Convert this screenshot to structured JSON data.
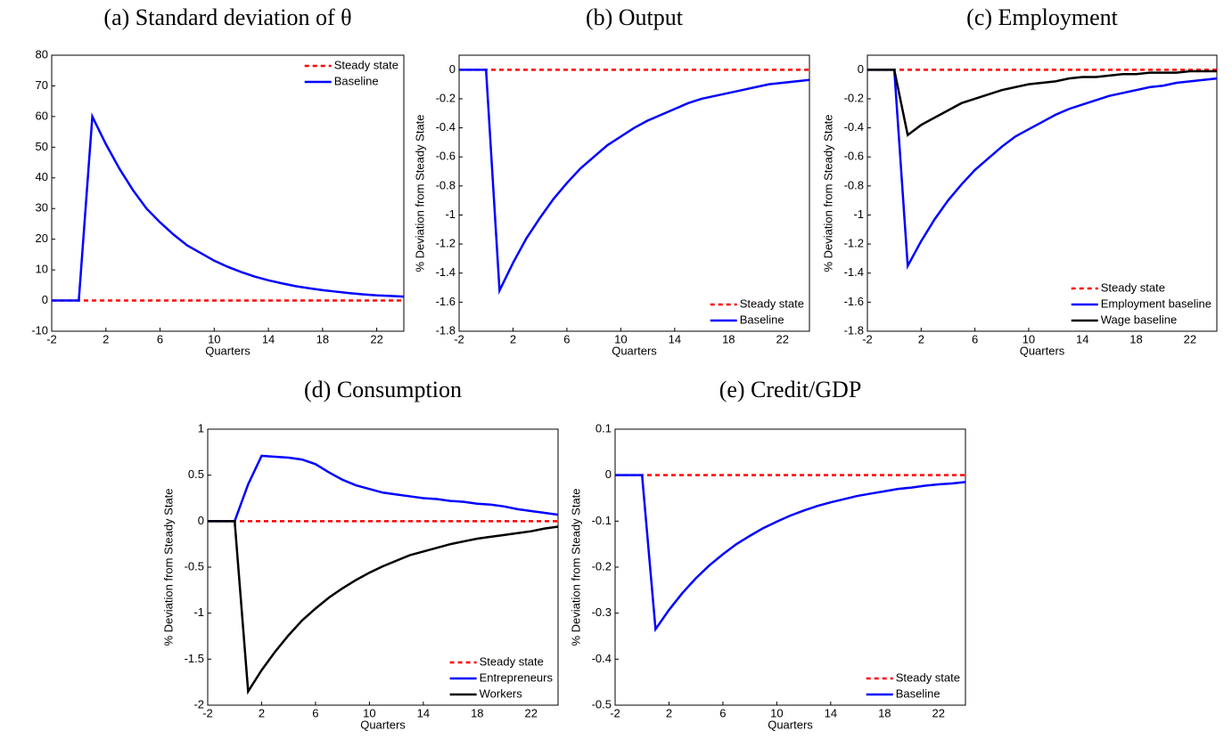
{
  "chart_data": [
    {
      "type": "line",
      "title": "(a) Standard deviation of θ",
      "xlabel": "Quarters",
      "x": [
        -2,
        -1,
        0,
        1,
        2,
        3,
        4,
        5,
        6,
        7,
        8,
        9,
        10,
        11,
        12,
        13,
        14,
        15,
        16,
        17,
        18,
        19,
        20,
        21,
        22,
        23,
        24
      ],
      "xlim": [
        -2,
        24
      ],
      "xticks": [
        -2,
        2,
        6,
        10,
        14,
        18,
        22
      ],
      "ylim": [
        -10,
        80
      ],
      "yticks": [
        -10,
        0,
        10,
        20,
        30,
        40,
        50,
        60,
        70,
        80
      ],
      "legend": "upper right",
      "series": [
        {
          "name": "Steady state",
          "color": "#ff0000",
          "linestyle": "dashed",
          "values": [
            0,
            0,
            0,
            0,
            0,
            0,
            0,
            0,
            0,
            0,
            0,
            0,
            0,
            0,
            0,
            0,
            0,
            0,
            0,
            0,
            0,
            0,
            0,
            0,
            0,
            0,
            0
          ]
        },
        {
          "name": "Baseline",
          "color": "#0000ff",
          "linestyle": "solid",
          "values": [
            0,
            0,
            0,
            60,
            51,
            43,
            36,
            30,
            25.5,
            21.5,
            18,
            15.5,
            13,
            11,
            9.3,
            7.8,
            6.6,
            5.6,
            4.7,
            4,
            3.4,
            2.9,
            2.4,
            2,
            1.7,
            1.5,
            1.3
          ]
        }
      ]
    },
    {
      "type": "line",
      "title": "(b) Output",
      "xlabel": "Quarters",
      "ylabel": "% Deviation from Steady State",
      "x": [
        -2,
        -1,
        0,
        1,
        2,
        3,
        4,
        5,
        6,
        7,
        8,
        9,
        10,
        11,
        12,
        13,
        14,
        15,
        16,
        17,
        18,
        19,
        20,
        21,
        22,
        23,
        24
      ],
      "xlim": [
        -2,
        24
      ],
      "xticks": [
        -2,
        2,
        6,
        10,
        14,
        18,
        22
      ],
      "ylim": [
        -1.8,
        0.1
      ],
      "yticks": [
        -1.8,
        -1.6,
        -1.4,
        -1.2,
        -1,
        -0.8,
        -0.6,
        -0.4,
        -0.2,
        0
      ],
      "legend": "lower right",
      "series": [
        {
          "name": "Steady state",
          "color": "#ff0000",
          "linestyle": "dashed",
          "values": [
            0,
            0,
            0,
            0,
            0,
            0,
            0,
            0,
            0,
            0,
            0,
            0,
            0,
            0,
            0,
            0,
            0,
            0,
            0,
            0,
            0,
            0,
            0,
            0,
            0,
            0,
            0
          ]
        },
        {
          "name": "Baseline",
          "color": "#0000ff",
          "linestyle": "solid",
          "values": [
            0,
            0,
            0,
            -1.52,
            -1.33,
            -1.16,
            -1.02,
            -0.89,
            -0.78,
            -0.68,
            -0.6,
            -0.52,
            -0.46,
            -0.4,
            -0.35,
            -0.31,
            -0.27,
            -0.23,
            -0.2,
            -0.18,
            -0.16,
            -0.14,
            -0.12,
            -0.1,
            -0.09,
            -0.08,
            -0.07
          ]
        }
      ]
    },
    {
      "type": "line",
      "title": "(c) Employment",
      "xlabel": "Quarters",
      "ylabel": "% Deviation from Steady State",
      "x": [
        -2,
        -1,
        0,
        1,
        2,
        3,
        4,
        5,
        6,
        7,
        8,
        9,
        10,
        11,
        12,
        13,
        14,
        15,
        16,
        17,
        18,
        19,
        20,
        21,
        22,
        23,
        24
      ],
      "xlim": [
        -2,
        24
      ],
      "xticks": [
        -2,
        2,
        6,
        10,
        14,
        18,
        22
      ],
      "ylim": [
        -1.8,
        0.1
      ],
      "yticks": [
        -1.8,
        -1.6,
        -1.4,
        -1.2,
        -1,
        -0.8,
        -0.6,
        -0.4,
        -0.2,
        0
      ],
      "legend": "lower right",
      "series": [
        {
          "name": "Steady state",
          "color": "#ff0000",
          "linestyle": "dashed",
          "values": [
            0,
            0,
            0,
            0,
            0,
            0,
            0,
            0,
            0,
            0,
            0,
            0,
            0,
            0,
            0,
            0,
            0,
            0,
            0,
            0,
            0,
            0,
            0,
            0,
            0,
            0,
            0
          ]
        },
        {
          "name": "Employment baseline",
          "color": "#0000ff",
          "linestyle": "solid",
          "values": [
            0,
            0,
            0,
            -1.35,
            -1.18,
            -1.03,
            -0.9,
            -0.79,
            -0.69,
            -0.61,
            -0.53,
            -0.46,
            -0.41,
            -0.36,
            -0.31,
            -0.27,
            -0.24,
            -0.21,
            -0.18,
            -0.16,
            -0.14,
            -0.12,
            -0.11,
            -0.09,
            -0.08,
            -0.07,
            -0.06
          ]
        },
        {
          "name": "Wage baseline",
          "color": "#000000",
          "linestyle": "solid",
          "values": [
            0,
            0,
            0,
            -0.45,
            -0.38,
            -0.33,
            -0.28,
            -0.23,
            -0.2,
            -0.17,
            -0.14,
            -0.12,
            -0.1,
            -0.09,
            -0.08,
            -0.06,
            -0.05,
            -0.05,
            -0.04,
            -0.03,
            -0.03,
            -0.02,
            -0.02,
            -0.02,
            -0.01,
            -0.01,
            -0.01
          ]
        }
      ]
    },
    {
      "type": "line",
      "title": "(d) Consumption",
      "xlabel": "Quarters",
      "ylabel": "% Deviation from Steady State",
      "x": [
        -2,
        -1,
        0,
        1,
        2,
        3,
        4,
        5,
        6,
        7,
        8,
        9,
        10,
        11,
        12,
        13,
        14,
        15,
        16,
        17,
        18,
        19,
        20,
        21,
        22,
        23,
        24
      ],
      "xlim": [
        -2,
        24
      ],
      "xticks": [
        -2,
        2,
        6,
        10,
        14,
        18,
        22
      ],
      "ylim": [
        -2,
        1
      ],
      "yticks": [
        -2,
        -1.5,
        -1,
        -0.5,
        0,
        0.5,
        1
      ],
      "legend": "lower right",
      "series": [
        {
          "name": "Steady state",
          "color": "#ff0000",
          "linestyle": "dashed",
          "values": [
            0,
            0,
            0,
            0,
            0,
            0,
            0,
            0,
            0,
            0,
            0,
            0,
            0,
            0,
            0,
            0,
            0,
            0,
            0,
            0,
            0,
            0,
            0,
            0,
            0,
            0,
            0
          ]
        },
        {
          "name": "Entrepreneurs",
          "color": "#0000ff",
          "linestyle": "solid",
          "values": [
            0,
            0,
            0,
            0.4,
            0.71,
            0.7,
            0.69,
            0.67,
            0.62,
            0.53,
            0.45,
            0.39,
            0.35,
            0.31,
            0.29,
            0.27,
            0.25,
            0.24,
            0.22,
            0.21,
            0.19,
            0.18,
            0.16,
            0.13,
            0.11,
            0.09,
            0.07
          ]
        },
        {
          "name": "Workers",
          "color": "#000000",
          "linestyle": "solid",
          "values": [
            0,
            0,
            0,
            -1.85,
            -1.62,
            -1.42,
            -1.24,
            -1.08,
            -0.95,
            -0.83,
            -0.73,
            -0.64,
            -0.56,
            -0.49,
            -0.43,
            -0.37,
            -0.33,
            -0.29,
            -0.25,
            -0.22,
            -0.19,
            -0.17,
            -0.15,
            -0.13,
            -0.11,
            -0.08,
            -0.06
          ]
        }
      ]
    },
    {
      "type": "line",
      "title": "(e) Credit/GDP",
      "xlabel": "Quarters",
      "ylabel": "% Deviation from Steady State",
      "x": [
        -2,
        -1,
        0,
        1,
        2,
        3,
        4,
        5,
        6,
        7,
        8,
        9,
        10,
        11,
        12,
        13,
        14,
        15,
        16,
        17,
        18,
        19,
        20,
        21,
        22,
        23,
        24
      ],
      "xlim": [
        -2,
        24
      ],
      "xticks": [
        -2,
        2,
        6,
        10,
        14,
        18,
        22
      ],
      "ylim": [
        -0.5,
        0.1
      ],
      "yticks": [
        -0.5,
        -0.4,
        -0.3,
        -0.2,
        -0.1,
        0,
        0.1
      ],
      "legend": "lower right",
      "series": [
        {
          "name": "Steady state",
          "color": "#ff0000",
          "linestyle": "dashed",
          "values": [
            0,
            0,
            0,
            0,
            0,
            0,
            0,
            0,
            0,
            0,
            0,
            0,
            0,
            0,
            0,
            0,
            0,
            0,
            0,
            0,
            0,
            0,
            0,
            0,
            0,
            0,
            0
          ]
        },
        {
          "name": "Baseline",
          "color": "#0000ff",
          "linestyle": "solid",
          "values": [
            0,
            0,
            0,
            -0.335,
            -0.293,
            -0.256,
            -0.224,
            -0.196,
            -0.172,
            -0.15,
            -0.132,
            -0.115,
            -0.101,
            -0.088,
            -0.077,
            -0.067,
            -0.059,
            -0.052,
            -0.045,
            -0.04,
            -0.035,
            -0.03,
            -0.027,
            -0.023,
            -0.02,
            -0.018,
            -0.015
          ]
        }
      ]
    }
  ]
}
